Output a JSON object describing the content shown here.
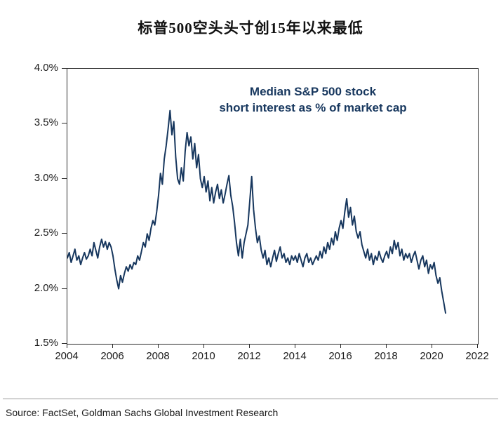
{
  "header": {
    "title": "标普500空头头寸创15年以来最低"
  },
  "footer": {
    "source": "Source: FactSet, Goldman Sachs Global Investment Research"
  },
  "chart_data": {
    "type": "line",
    "title": "标普500空头头寸创15年以来最低",
    "annotation": {
      "line1": "Median S&P 500 stock",
      "line2": "short interest as % of market cap"
    },
    "line_color": "#17375e",
    "xlabel": "",
    "ylabel": "",
    "xlim": [
      2004,
      2022
    ],
    "ylim": [
      1.5,
      4.0
    ],
    "x_ticks": [
      2004,
      2006,
      2008,
      2010,
      2012,
      2014,
      2016,
      2018,
      2020,
      2022
    ],
    "y_tick_values": [
      4.0,
      3.5,
      3.0,
      2.5,
      2.0,
      1.5
    ],
    "y_tick_labels": [
      "4.0%",
      "3.5%",
      "3.0%",
      "2.5%",
      "2.0%",
      "1.5%"
    ],
    "grid": false,
    "legend": "none",
    "x_start_year": 2004,
    "points_per_year": 12,
    "series_name": "Median S&P 500 stock short interest as % of market cap",
    "values": [
      2.28,
      2.33,
      2.24,
      2.3,
      2.36,
      2.26,
      2.3,
      2.22,
      2.28,
      2.33,
      2.27,
      2.3,
      2.36,
      2.3,
      2.42,
      2.35,
      2.28,
      2.38,
      2.45,
      2.38,
      2.43,
      2.36,
      2.42,
      2.38,
      2.3,
      2.18,
      2.08,
      2.0,
      2.12,
      2.06,
      2.14,
      2.2,
      2.16,
      2.22,
      2.18,
      2.24,
      2.22,
      2.3,
      2.26,
      2.34,
      2.42,
      2.38,
      2.5,
      2.44,
      2.55,
      2.62,
      2.58,
      2.7,
      2.85,
      3.05,
      2.95,
      3.18,
      3.3,
      3.45,
      3.62,
      3.4,
      3.52,
      3.2,
      3.0,
      2.95,
      3.1,
      2.98,
      3.25,
      3.42,
      3.3,
      3.38,
      3.18,
      3.32,
      3.1,
      3.22,
      3.0,
      2.92,
      3.02,
      2.88,
      2.98,
      2.8,
      2.92,
      2.78,
      2.88,
      2.95,
      2.82,
      2.9,
      2.78,
      2.86,
      2.95,
      3.03,
      2.85,
      2.75,
      2.6,
      2.42,
      2.3,
      2.45,
      2.28,
      2.42,
      2.5,
      2.58,
      2.8,
      3.02,
      2.72,
      2.55,
      2.42,
      2.48,
      2.35,
      2.28,
      2.35,
      2.22,
      2.28,
      2.2,
      2.28,
      2.35,
      2.25,
      2.32,
      2.38,
      2.28,
      2.32,
      2.24,
      2.28,
      2.22,
      2.3,
      2.26,
      2.3,
      2.24,
      2.32,
      2.26,
      2.2,
      2.28,
      2.32,
      2.24,
      2.28,
      2.22,
      2.26,
      2.3,
      2.26,
      2.34,
      2.28,
      2.38,
      2.32,
      2.42,
      2.36,
      2.46,
      2.4,
      2.52,
      2.44,
      2.55,
      2.62,
      2.55,
      2.7,
      2.82,
      2.65,
      2.74,
      2.58,
      2.66,
      2.52,
      2.46,
      2.52,
      2.4,
      2.34,
      2.28,
      2.36,
      2.26,
      2.32,
      2.22,
      2.3,
      2.26,
      2.34,
      2.28,
      2.24,
      2.3,
      2.34,
      2.28,
      2.38,
      2.32,
      2.44,
      2.36,
      2.42,
      2.3,
      2.36,
      2.26,
      2.32,
      2.28,
      2.32,
      2.24,
      2.3,
      2.34,
      2.26,
      2.18,
      2.26,
      2.3,
      2.2,
      2.26,
      2.14,
      2.22,
      2.18,
      2.24,
      2.12,
      2.05,
      2.1,
      1.98,
      1.88,
      1.78
    ]
  }
}
